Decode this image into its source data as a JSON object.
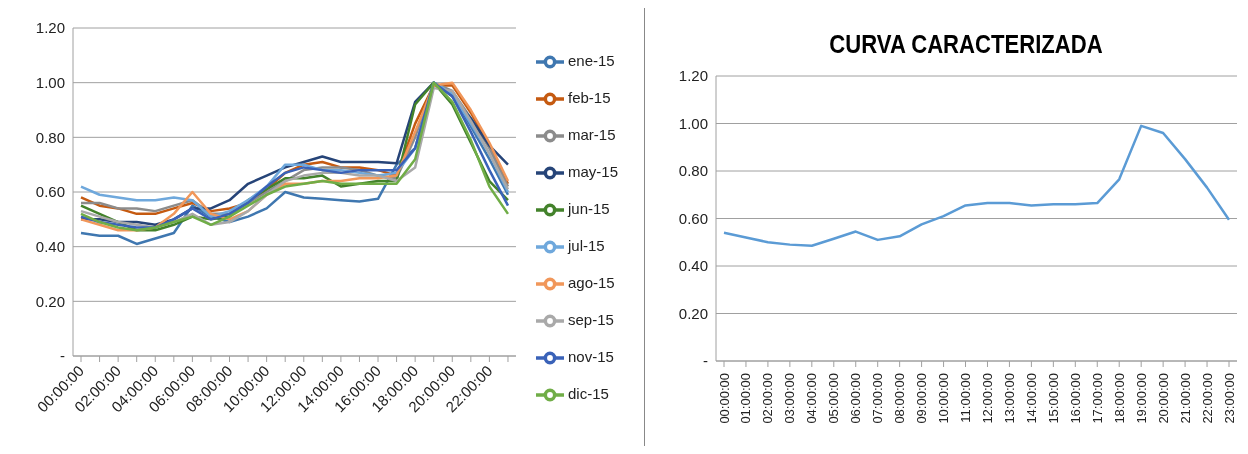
{
  "chart_data": [
    {
      "type": "line",
      "categories": [
        "00:00:00",
        null,
        "02:00:00",
        null,
        "04:00:00",
        null,
        "06:00:00",
        null,
        "08:00:00",
        null,
        "10:00:00",
        null,
        "12:00:00",
        null,
        "14:00:00",
        null,
        "16:00:00",
        null,
        "18:00:00",
        null,
        "20:00:00",
        null,
        "22:00:00",
        null
      ],
      "series": [
        {
          "name": "ene-15",
          "color": "#3f77b0",
          "values": [
            0.45,
            0.44,
            0.44,
            0.41,
            0.43,
            0.45,
            0.55,
            0.51,
            0.49,
            0.51,
            0.54,
            0.6,
            0.58,
            0.575,
            0.57,
            0.565,
            0.575,
            0.7,
            0.76,
            1.0,
            0.96,
            0.84,
            0.72,
            0.59
          ]
        },
        {
          "name": "feb-15",
          "color": "#c55a11",
          "values": [
            0.58,
            0.55,
            0.54,
            0.52,
            0.52,
            0.54,
            0.56,
            0.53,
            0.54,
            0.56,
            0.61,
            0.67,
            0.7,
            0.71,
            0.69,
            0.69,
            0.68,
            0.66,
            0.85,
            0.99,
            0.99,
            0.89,
            0.77,
            0.63
          ]
        },
        {
          "name": "mar-15",
          "color": "#8c8c8c",
          "values": [
            0.56,
            0.56,
            0.54,
            0.54,
            0.53,
            0.55,
            0.57,
            0.52,
            0.52,
            0.56,
            0.6,
            0.64,
            0.68,
            0.69,
            0.69,
            0.68,
            0.66,
            0.65,
            0.8,
            1.0,
            0.97,
            0.87,
            0.76,
            0.62
          ]
        },
        {
          "name": "may-15",
          "color": "#264478",
          "values": [
            0.5,
            0.5,
            0.49,
            0.49,
            0.48,
            0.5,
            0.54,
            0.54,
            0.57,
            0.63,
            0.66,
            0.69,
            0.71,
            0.73,
            0.71,
            0.71,
            0.71,
            0.705,
            0.93,
            1.0,
            0.95,
            0.87,
            0.77,
            0.7
          ]
        },
        {
          "name": "jun-15",
          "color": "#43822b",
          "values": [
            0.55,
            0.52,
            0.49,
            0.46,
            0.46,
            0.48,
            0.51,
            0.5,
            0.51,
            0.57,
            0.61,
            0.65,
            0.65,
            0.66,
            0.62,
            0.63,
            0.64,
            0.64,
            0.92,
            1.0,
            0.92,
            0.78,
            0.64,
            0.57
          ]
        },
        {
          "name": "jul-15",
          "color": "#6fa8dc",
          "values": [
            0.62,
            0.59,
            0.58,
            0.57,
            0.57,
            0.58,
            0.57,
            0.51,
            0.53,
            0.57,
            0.62,
            0.7,
            0.7,
            0.68,
            0.68,
            0.67,
            0.66,
            0.67,
            0.76,
            1.0,
            0.96,
            0.85,
            0.74,
            0.6
          ]
        },
        {
          "name": "ago-15",
          "color": "#f1975a",
          "values": [
            0.5,
            0.48,
            0.46,
            0.46,
            0.47,
            0.52,
            0.6,
            0.52,
            0.5,
            0.53,
            0.59,
            0.63,
            0.63,
            0.64,
            0.64,
            0.65,
            0.65,
            0.66,
            0.82,
            0.99,
            1.0,
            0.9,
            0.78,
            0.64
          ]
        },
        {
          "name": "sep-15",
          "color": "#a9a9a9",
          "values": [
            0.53,
            0.51,
            0.49,
            0.48,
            0.47,
            0.49,
            0.52,
            0.48,
            0.49,
            0.53,
            0.59,
            0.64,
            0.66,
            0.67,
            0.67,
            0.66,
            0.66,
            0.64,
            0.69,
            0.98,
            0.97,
            0.86,
            0.74,
            0.61
          ]
        },
        {
          "name": "nov-15",
          "color": "#3a62b8",
          "values": [
            0.51,
            0.49,
            0.48,
            0.47,
            0.47,
            0.5,
            0.54,
            0.5,
            0.52,
            0.56,
            0.62,
            0.67,
            0.69,
            0.68,
            0.67,
            0.68,
            0.68,
            0.68,
            0.76,
            1.0,
            0.95,
            0.82,
            0.68,
            0.55
          ]
        },
        {
          "name": "dic-15",
          "color": "#70ad47",
          "values": [
            0.52,
            0.49,
            0.47,
            0.46,
            0.47,
            0.49,
            0.51,
            0.48,
            0.51,
            0.55,
            0.59,
            0.62,
            0.63,
            0.64,
            0.63,
            0.63,
            0.63,
            0.63,
            0.72,
            1.0,
            0.93,
            0.79,
            0.62,
            0.52
          ]
        }
      ],
      "ylim": [
        0,
        1.2
      ],
      "yticks": [
        {
          "value": 0,
          "label": "-"
        },
        {
          "value": 0.2,
          "label": "0.20"
        },
        {
          "value": 0.4,
          "label": "0.40"
        },
        {
          "value": 0.6,
          "label": "0.60"
        },
        {
          "value": 0.8,
          "label": "0.80"
        },
        {
          "value": 1.0,
          "label": "1.00"
        },
        {
          "value": 1.2,
          "label": "1.20"
        }
      ],
      "grid": "y",
      "legend": "right",
      "marker": "none",
      "line_style": "solid"
    },
    {
      "type": "line",
      "title": "CURVA CARACTERIZADA",
      "categories": [
        "00:00:00",
        "01:00:00",
        "02:00:00",
        "03:00:00",
        "04:00:00",
        "05:00:00",
        "06:00:00",
        "07:00:00",
        "08:00:00",
        "09:00:00",
        "10:00:00",
        "11:00:00",
        "12:00:00",
        "13:00:00",
        "14:00:00",
        "15:00:00",
        "16:00:00",
        "17:00:00",
        "18:00:00",
        "19:00:00",
        "20:00:00",
        "21:00:00",
        "22:00:00",
        "23:00:00"
      ],
      "series": [
        {
          "color": "#5b9bd5",
          "values": [
            0.54,
            0.52,
            0.5,
            0.49,
            0.485,
            0.515,
            0.545,
            0.51,
            0.525,
            0.575,
            0.61,
            0.655,
            0.665,
            0.665,
            0.655,
            0.66,
            0.66,
            0.665,
            0.765,
            0.99,
            0.96,
            0.85,
            0.73,
            0.595
          ]
        }
      ],
      "ylim": [
        0,
        1.2
      ],
      "yticks": [
        {
          "value": 0,
          "label": "-"
        },
        {
          "value": 0.2,
          "label": "0.20"
        },
        {
          "value": 0.4,
          "label": "0.40"
        },
        {
          "value": 0.6,
          "label": "0.60"
        },
        {
          "value": 0.8,
          "label": "0.80"
        },
        {
          "value": 1.0,
          "label": "1.00"
        },
        {
          "value": 1.2,
          "label": "1.20"
        }
      ],
      "grid": "y",
      "legend": false,
      "marker": "none",
      "line_style": "solid"
    }
  ]
}
